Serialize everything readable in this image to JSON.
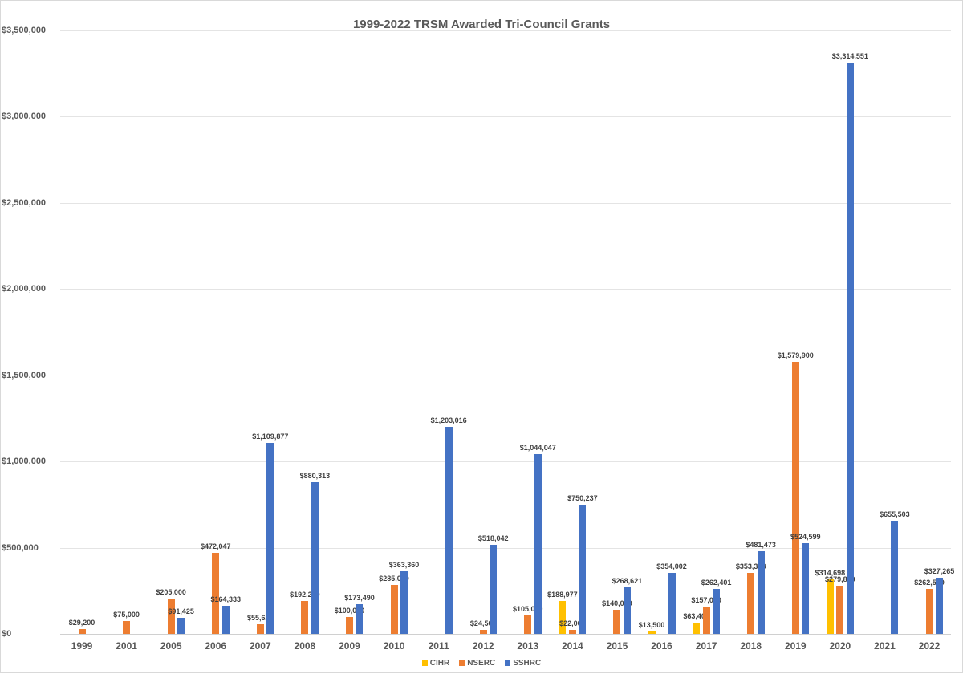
{
  "chart_data": {
    "type": "bar",
    "title": "1999-2022 TRSM Awarded Tri-Council Grants",
    "xlabel": "",
    "ylabel": "",
    "ylim": [
      0,
      3500000
    ],
    "yticks": [
      "$0",
      "$500,000",
      "$1,000,000",
      "$1,500,000",
      "$2,000,000",
      "$2,500,000",
      "$3,000,000",
      "$3,500,000"
    ],
    "grid": true,
    "legend_position": "bottom",
    "categories": [
      "1999",
      "2001",
      "2005",
      "2006",
      "2007",
      "2008",
      "2009",
      "2010",
      "2011",
      "2012",
      "2013",
      "2014",
      "2015",
      "2016",
      "2017",
      "2018",
      "2019",
      "2020",
      "2021",
      "2022"
    ],
    "series": [
      {
        "name": "CIHR",
        "color": "#FFC000",
        "values": [
          null,
          null,
          null,
          null,
          null,
          null,
          null,
          null,
          null,
          null,
          null,
          188977,
          null,
          13500,
          63400,
          null,
          null,
          314698,
          null,
          null
        ]
      },
      {
        "name": "NSERC",
        "color": "#ED7D31",
        "values": [
          29200,
          75000,
          205000,
          472047,
          55624,
          192200,
          100000,
          285000,
          null,
          24500,
          105000,
          22000,
          140000,
          null,
          157000,
          353363,
          1579900,
          279800,
          null,
          262500
        ]
      },
      {
        "name": "SSHRC",
        "color": "#4472C4",
        "values": [
          null,
          null,
          91425,
          164333,
          1109877,
          880313,
          173490,
          363360,
          1203016,
          518042,
          1044047,
          750237,
          268621,
          354002,
          262401,
          481473,
          524599,
          3314551,
          655503,
          327265
        ]
      }
    ]
  }
}
